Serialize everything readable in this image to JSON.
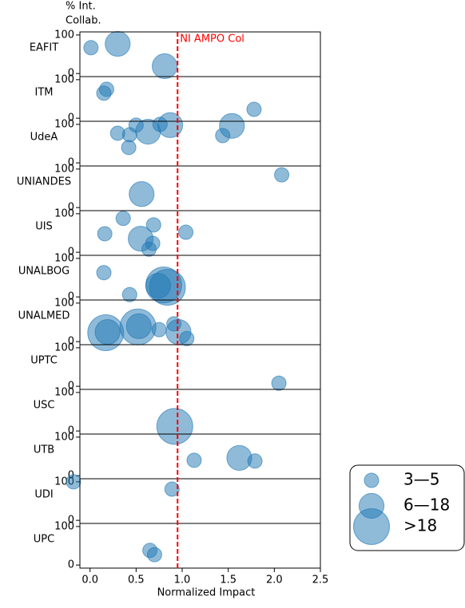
{
  "chart_data": {
    "type": "bubble",
    "ylabel": [
      "% Int.",
      "Collab."
    ],
    "xlabel": "Normalized Impact",
    "xlim": [
      -0.11,
      2.5
    ],
    "xticks": [
      {
        "value": 0,
        "label": "0.0"
      },
      0.5,
      {
        "value": 1,
        "label": "1.0"
      },
      1.5,
      {
        "value": 2,
        "label": "2.0"
      },
      2.5
    ],
    "ylim": [
      -8,
      108
    ],
    "yticks": [
      0,
      100
    ],
    "color": "#1f77b4",
    "reference": {
      "x": 0.95,
      "label": "NI AMPO Col",
      "color": "#ff0000"
    },
    "size_legend": [
      {
        "label": "3—5",
        "size": 4
      },
      {
        "label": "6—18",
        "size": 12
      },
      {
        "label": ">18",
        "size": 25
      }
    ],
    "panels": [
      {
        "name": "EAFIT",
        "x": [
          0.01,
          0.3,
          0.81
        ],
        "y": [
          67,
          77,
          19
        ],
        "size": [
          4,
          12,
          12
        ]
      },
      {
        "name": "ITM",
        "x": [
          0.18,
          0.15,
          1.78
        ],
        "y": [
          75,
          65,
          23
        ],
        "size": [
          4,
          4,
          4
        ]
      },
      {
        "name": "UdeA",
        "x": [
          0.3,
          0.5,
          0.63,
          0.43,
          0.42,
          0.76,
          0.87,
          1.44,
          1.54
        ],
        "y": [
          77,
          98,
          81,
          73,
          40,
          100,
          98,
          71,
          96
        ],
        "size": [
          4,
          4,
          12,
          4,
          4,
          4,
          12,
          4,
          12
        ]
      },
      {
        "name": "UNIANDES",
        "x": [
          2.08,
          0.56
        ],
        "y": [
          85,
          35
        ],
        "size": [
          4,
          12
        ]
      },
      {
        "name": "UIS",
        "x": [
          0.36,
          0.69,
          0.16,
          0.55,
          0.68,
          0.64,
          1.04
        ],
        "y": [
          88,
          71,
          48,
          35,
          23,
          8,
          52
        ],
        "size": [
          4,
          4,
          4,
          12,
          4,
          4,
          4
        ]
      },
      {
        "name": "UNALBOG",
        "x": [
          0.15,
          0.43,
          0.74,
          0.8,
          0.84
        ],
        "y": [
          63,
          6,
          29,
          31,
          25
        ],
        "size": [
          4,
          4,
          12,
          25,
          25
        ]
      },
      {
        "name": "UNALMED",
        "x": [
          0.17,
          0.19,
          0.52,
          0.53,
          0.75,
          0.91,
          0.96,
          1.05
        ],
        "y": [
          23,
          25,
          38,
          40,
          31,
          46,
          25,
          8
        ],
        "size": [
          25,
          12,
          25,
          12,
          4,
          4,
          12,
          4
        ]
      },
      {
        "name": "UPTC",
        "x": [
          2.05
        ],
        "y": [
          8
        ],
        "size": [
          4
        ]
      },
      {
        "name": "USC",
        "x": [
          0.92
        ],
        "y": [
          12
        ],
        "size": [
          25
        ]
      },
      {
        "name": "UTB",
        "x": [
          1.13,
          1.62,
          1.79
        ],
        "y": [
          40,
          46,
          38
        ],
        "size": [
          4,
          12,
          4
        ]
      },
      {
        "name": "UDI",
        "x": [
          -0.18,
          0.89
        ],
        "y": [
          100,
          81
        ],
        "size": [
          4,
          4
        ]
      },
      {
        "name": "UPC",
        "x": [
          0.65,
          0.7
        ],
        "y": [
          38,
          27
        ],
        "size": [
          4,
          4
        ]
      }
    ]
  }
}
